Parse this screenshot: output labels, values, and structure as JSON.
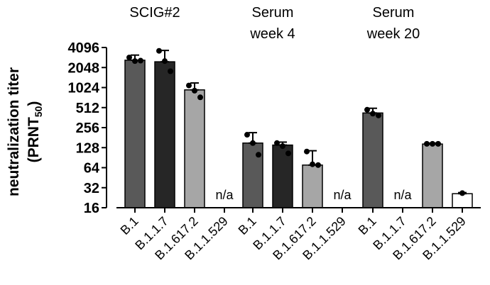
{
  "chart_data": {
    "type": "bar",
    "scale": "log2",
    "ylabel_main": "neutralization titer",
    "ylabel_unit_prefix": "(PRNT",
    "ylabel_unit_sub": "50",
    "ylabel_unit_suffix": ")",
    "yticks": [
      16,
      32,
      64,
      128,
      256,
      512,
      1024,
      2048,
      4096
    ],
    "ytick_labels": [
      "16",
      "32",
      "64",
      "128",
      "256",
      "512",
      "1024",
      "2048",
      "4096"
    ],
    "ylim": [
      16,
      4096
    ],
    "categories": [
      "B.1",
      "B.1.1.7",
      "B.1.617.2",
      "B.1.1.529"
    ],
    "bar_colors": [
      "#595959",
      "#262626",
      "#a6a6a6",
      "#ffffff"
    ],
    "na_text": "n/a",
    "groups": [
      {
        "title_line1": "SCIG#2",
        "title_line2": "",
        "bars": [
          {
            "category": "B.1",
            "value": 2640,
            "err_low": 2340,
            "err_high": 3150,
            "points": [
              2900,
              2560,
              2600
            ]
          },
          {
            "category": "B.1.1.7",
            "value": 2500,
            "err_low": 1800,
            "err_high": 3700,
            "points": [
              3650,
              2560,
              1800
            ]
          },
          {
            "category": "B.1.617.2",
            "value": 945,
            "err_low": 720,
            "err_high": 1200,
            "points": [
              1100,
              920,
              730
            ]
          },
          {
            "category": "B.1.1.529",
            "value": null,
            "err_low": null,
            "err_high": null,
            "points": []
          }
        ]
      },
      {
        "title_line1": "Serum",
        "title_line2": "week 4",
        "bars": [
          {
            "category": "B.1",
            "value": 150,
            "err_low": 95,
            "err_high": 215,
            "points": [
              200,
              150,
              100
            ]
          },
          {
            "category": "B.1.1.7",
            "value": 140,
            "err_low": 95,
            "err_high": 155,
            "points": [
              150,
              135,
              105
            ]
          },
          {
            "category": "B.1.617.2",
            "value": 70,
            "err_low": 60,
            "err_high": 115,
            "points": [
              112,
              72,
              70
            ]
          },
          {
            "category": "B.1.1.529",
            "value": null,
            "err_low": null,
            "err_high": null,
            "points": []
          }
        ]
      },
      {
        "title_line1": "Serum",
        "title_line2": "week 20",
        "bars": [
          {
            "category": "B.1",
            "value": 425,
            "err_low": 380,
            "err_high": 500,
            "points": [
              475,
              415,
              390
            ]
          },
          {
            "category": "B.1.1.7",
            "value": null,
            "err_low": null,
            "err_high": null,
            "points": []
          },
          {
            "category": "B.1.617.2",
            "value": 145,
            "err_low": 142,
            "err_high": 150,
            "points": [
              146,
              146,
              146
            ]
          },
          {
            "category": "B.1.1.529",
            "value": 26,
            "err_low": 26,
            "err_high": 27,
            "points": [
              26.5
            ]
          }
        ]
      }
    ]
  }
}
